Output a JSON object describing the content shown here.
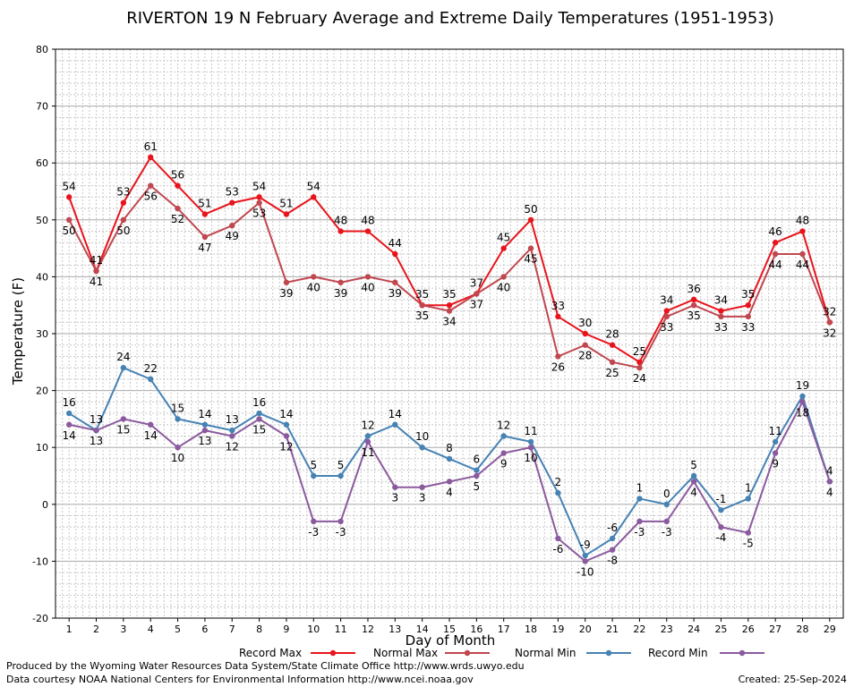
{
  "chart_data": {
    "type": "line",
    "title": "RIVERTON 19 N February Average and Extreme Daily Temperatures (1951-1953)",
    "xlabel": "Day of Month",
    "ylabel": "Temperature (F)",
    "ylim": [
      -20,
      80
    ],
    "yticks": [
      -20,
      -10,
      0,
      10,
      20,
      30,
      40,
      50,
      60,
      70,
      80
    ],
    "x": [
      1,
      2,
      3,
      4,
      5,
      6,
      7,
      8,
      9,
      10,
      11,
      12,
      13,
      14,
      15,
      16,
      17,
      18,
      19,
      20,
      21,
      22,
      23,
      24,
      25,
      26,
      27,
      28,
      29
    ],
    "grid": true,
    "legend_position": "bottom",
    "series": [
      {
        "name": "Record Max",
        "color": "#e8141c",
        "values": [
          54,
          41,
          53,
          61,
          56,
          51,
          53,
          54,
          51,
          54,
          48,
          48,
          44,
          35,
          35,
          37,
          45,
          50,
          33,
          30,
          28,
          25,
          34,
          36,
          34,
          35,
          46,
          48,
          32
        ]
      },
      {
        "name": "Normal Max",
        "color": "#c0474f",
        "values": [
          50,
          41,
          50,
          56,
          52,
          47,
          49,
          53,
          39,
          40,
          39,
          40,
          39,
          35,
          34,
          37,
          40,
          45,
          26,
          28,
          25,
          24,
          33,
          35,
          33,
          33,
          44,
          44,
          32
        ]
      },
      {
        "name": "Normal Min",
        "color": "#4682b4",
        "values": [
          16,
          13,
          24,
          22,
          15,
          14,
          13,
          16,
          14,
          5,
          5,
          12,
          14,
          10,
          8,
          6,
          12,
          11,
          2,
          -9,
          -6,
          1,
          0,
          5,
          -1,
          1,
          11,
          19,
          4
        ]
      },
      {
        "name": "Record Min",
        "color": "#8b5a9e",
        "values": [
          14,
          13,
          15,
          14,
          10,
          13,
          12,
          15,
          12,
          -3,
          -3,
          11,
          3,
          3,
          4,
          5,
          9,
          10,
          -6,
          -10,
          -8,
          -3,
          -3,
          4,
          -4,
          -5,
          9,
          18,
          4
        ]
      }
    ]
  },
  "footer": {
    "produced_by": "Produced by the Wyoming Water Resources Data System/State Climate Office http://www.wrds.uwyo.edu",
    "data_courtesy": "Data courtesy NOAA National Centers for Environmental Information http://www.ncei.noaa.gov",
    "created": "Created:  25-Sep-2024"
  }
}
